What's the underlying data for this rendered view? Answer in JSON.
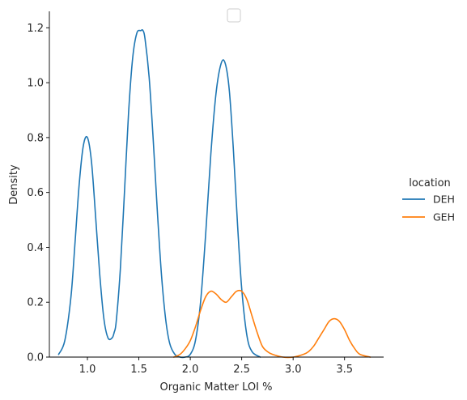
{
  "chart_data": {
    "type": "line",
    "title": "",
    "xlabel": "Organic Matter LOI %",
    "ylabel": "Density",
    "xlim": [
      0.63,
      3.88
    ],
    "ylim": [
      0,
      1.26
    ],
    "x_ticks": [
      1.0,
      1.5,
      2.0,
      2.5,
      3.0,
      3.5
    ],
    "x_tick_labels": [
      "1.0",
      "1.5",
      "2.0",
      "2.5",
      "3.0",
      "3.5"
    ],
    "y_ticks": [
      0.0,
      0.2,
      0.4,
      0.6,
      0.8,
      1.0,
      1.2
    ],
    "y_tick_labels": [
      "0.0",
      "0.2",
      "0.4",
      "0.6",
      "0.8",
      "1.0",
      "1.2"
    ],
    "grid": false,
    "legend": {
      "title": "location",
      "placement": "right-outside"
    },
    "series": [
      {
        "name": "DEH",
        "color": "#1f77b4",
        "x": [
          0.72,
          0.78,
          0.84,
          0.88,
          0.92,
          0.96,
          1.0,
          1.04,
          1.08,
          1.12,
          1.16,
          1.2,
          1.24,
          1.26,
          1.28,
          1.32,
          1.36,
          1.4,
          1.44,
          1.48,
          1.52,
          1.54,
          1.56,
          1.6,
          1.64,
          1.68,
          1.72,
          1.76,
          1.8,
          1.85,
          1.9,
          1.95,
          2.0,
          2.05,
          2.1,
          2.15,
          2.2,
          2.25,
          2.3,
          2.34,
          2.38,
          2.42,
          2.46,
          2.5,
          2.55,
          2.6,
          2.68
        ],
        "y": [
          0.01,
          0.06,
          0.22,
          0.42,
          0.63,
          0.77,
          0.8,
          0.71,
          0.51,
          0.3,
          0.14,
          0.07,
          0.07,
          0.09,
          0.13,
          0.32,
          0.6,
          0.89,
          1.09,
          1.18,
          1.19,
          1.19,
          1.16,
          1.02,
          0.79,
          0.53,
          0.3,
          0.14,
          0.05,
          0.01,
          0.0,
          0.0,
          0.01,
          0.06,
          0.2,
          0.45,
          0.74,
          0.96,
          1.07,
          1.07,
          0.97,
          0.75,
          0.48,
          0.25,
          0.08,
          0.02,
          0.0
        ]
      },
      {
        "name": "GEH",
        "color": "#ff7f0e",
        "x": [
          1.84,
          1.9,
          1.95,
          2.0,
          2.05,
          2.1,
          2.15,
          2.2,
          2.25,
          2.3,
          2.35,
          2.4,
          2.45,
          2.5,
          2.55,
          2.6,
          2.65,
          2.7,
          2.75,
          2.8,
          2.9,
          3.0,
          3.1,
          3.15,
          3.2,
          3.25,
          3.3,
          3.35,
          3.4,
          3.45,
          3.5,
          3.55,
          3.6,
          3.65,
          3.75
        ],
        "y": [
          0.0,
          0.01,
          0.03,
          0.06,
          0.11,
          0.17,
          0.22,
          0.24,
          0.23,
          0.21,
          0.2,
          0.22,
          0.24,
          0.24,
          0.21,
          0.15,
          0.09,
          0.04,
          0.02,
          0.01,
          0.0,
          0.0,
          0.01,
          0.02,
          0.04,
          0.07,
          0.1,
          0.13,
          0.14,
          0.13,
          0.1,
          0.06,
          0.03,
          0.01,
          0.0
        ]
      }
    ]
  }
}
